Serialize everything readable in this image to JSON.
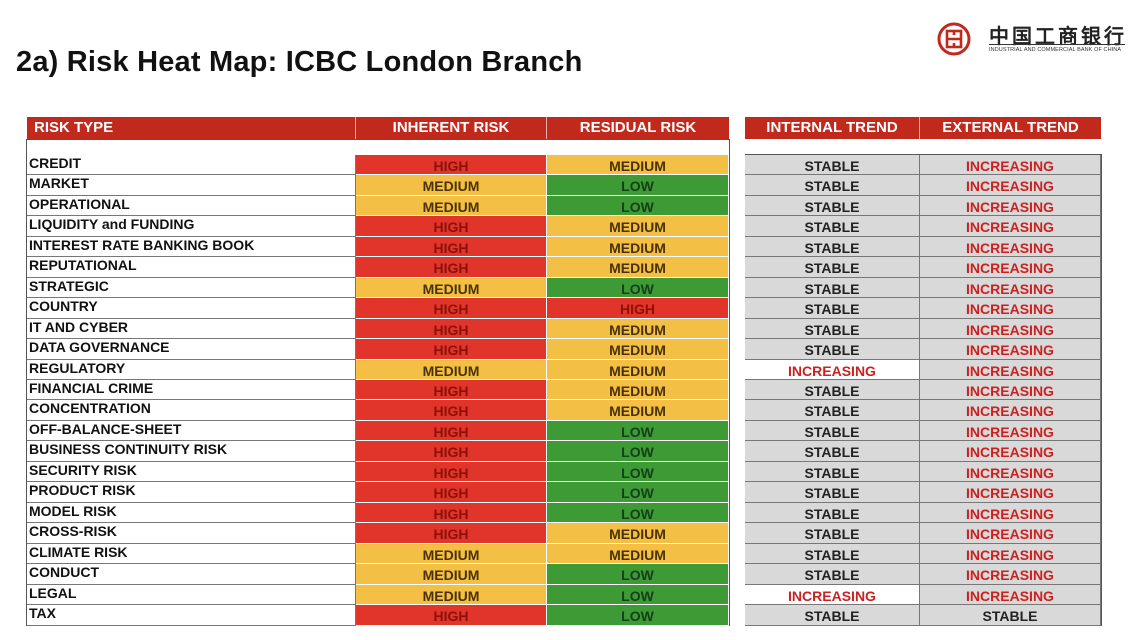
{
  "title": "2a) Risk Heat Map: ICBC London Branch",
  "logo": {
    "chinese_name": "中国工商银行",
    "english_name": "INDUSTRIAL AND COMMERCIAL BANK OF CHINA",
    "mark_icon": "icbc-logo-icon"
  },
  "colors": {
    "header_red": "#c1291d",
    "high": "#e1342a",
    "medium": "#f3bf44",
    "low": "#3d9a35",
    "trend_gray": "#d9d9d9",
    "increasing_text": "#cc2121"
  },
  "headers": {
    "risk_type": "RISK TYPE",
    "inherent": "INHERENT RISK",
    "residual": "RESIDUAL RISK",
    "internal": "INTERNAL TREND",
    "external": "EXTERNAL TREND"
  },
  "rows": [
    {
      "risk": "CREDIT",
      "inherent": "HIGH",
      "residual": "MEDIUM",
      "internal": "STABLE",
      "external": "INCREASING"
    },
    {
      "risk": "MARKET",
      "inherent": "MEDIUM",
      "residual": "LOW",
      "internal": "STABLE",
      "external": "INCREASING"
    },
    {
      "risk": "OPERATIONAL",
      "inherent": "MEDIUM",
      "residual": "LOW",
      "internal": "STABLE",
      "external": "INCREASING"
    },
    {
      "risk": "LIQUIDITY and FUNDING",
      "inherent": "HIGH",
      "residual": "MEDIUM",
      "internal": "STABLE",
      "external": "INCREASING"
    },
    {
      "risk": "INTEREST RATE BANKING BOOK",
      "inherent": "HIGH",
      "residual": "MEDIUM",
      "internal": "STABLE",
      "external": "INCREASING"
    },
    {
      "risk": "REPUTATIONAL",
      "inherent": "HIGH",
      "residual": "MEDIUM",
      "internal": "STABLE",
      "external": "INCREASING"
    },
    {
      "risk": "STRATEGIC",
      "inherent": "MEDIUM",
      "residual": "LOW",
      "internal": "STABLE",
      "external": "INCREASING"
    },
    {
      "risk": "COUNTRY",
      "inherent": "HIGH",
      "residual": "HIGH",
      "internal": "STABLE",
      "external": "INCREASING"
    },
    {
      "risk": "IT AND CYBER",
      "inherent": "HIGH",
      "residual": "MEDIUM",
      "internal": "STABLE",
      "external": "INCREASING"
    },
    {
      "risk": "DATA GOVERNANCE",
      "inherent": "HIGH",
      "residual": "MEDIUM",
      "internal": "STABLE",
      "external": "INCREASING"
    },
    {
      "risk": "REGULATORY",
      "inherent": "MEDIUM",
      "residual": "MEDIUM",
      "internal": "INCREASING",
      "external": "INCREASING"
    },
    {
      "risk": "FINANCIAL CRIME",
      "inherent": "HIGH",
      "residual": "MEDIUM",
      "internal": "STABLE",
      "external": "INCREASING"
    },
    {
      "risk": "CONCENTRATION",
      "inherent": "HIGH",
      "residual": "MEDIUM",
      "internal": "STABLE",
      "external": "INCREASING"
    },
    {
      "risk": "OFF-BALANCE-SHEET",
      "inherent": "HIGH",
      "residual": "LOW",
      "internal": "STABLE",
      "external": "INCREASING"
    },
    {
      "risk": "BUSINESS CONTINUITY RISK",
      "inherent": "HIGH",
      "residual": "LOW",
      "internal": "STABLE",
      "external": "INCREASING"
    },
    {
      "risk": "SECURITY RISK",
      "inherent": "HIGH",
      "residual": "LOW",
      "internal": "STABLE",
      "external": "INCREASING"
    },
    {
      "risk": "PRODUCT RISK",
      "inherent": "HIGH",
      "residual": "LOW",
      "internal": "STABLE",
      "external": "INCREASING"
    },
    {
      "risk": "MODEL RISK",
      "inherent": "HIGH",
      "residual": "LOW",
      "internal": "STABLE",
      "external": "INCREASING"
    },
    {
      "risk": "CROSS-RISK",
      "inherent": "HIGH",
      "residual": "MEDIUM",
      "internal": "STABLE",
      "external": "INCREASING"
    },
    {
      "risk": "CLIMATE RISK",
      "inherent": "MEDIUM",
      "residual": "MEDIUM",
      "internal": "STABLE",
      "external": "INCREASING"
    },
    {
      "risk": "CONDUCT",
      "inherent": "MEDIUM",
      "residual": "LOW",
      "internal": "STABLE",
      "external": "INCREASING"
    },
    {
      "risk": "LEGAL",
      "inherent": "MEDIUM",
      "residual": "LOW",
      "internal": "INCREASING",
      "external": "INCREASING"
    },
    {
      "risk": "TAX",
      "inherent": "HIGH",
      "residual": "LOW",
      "internal": "STABLE",
      "external": "STABLE"
    }
  ]
}
